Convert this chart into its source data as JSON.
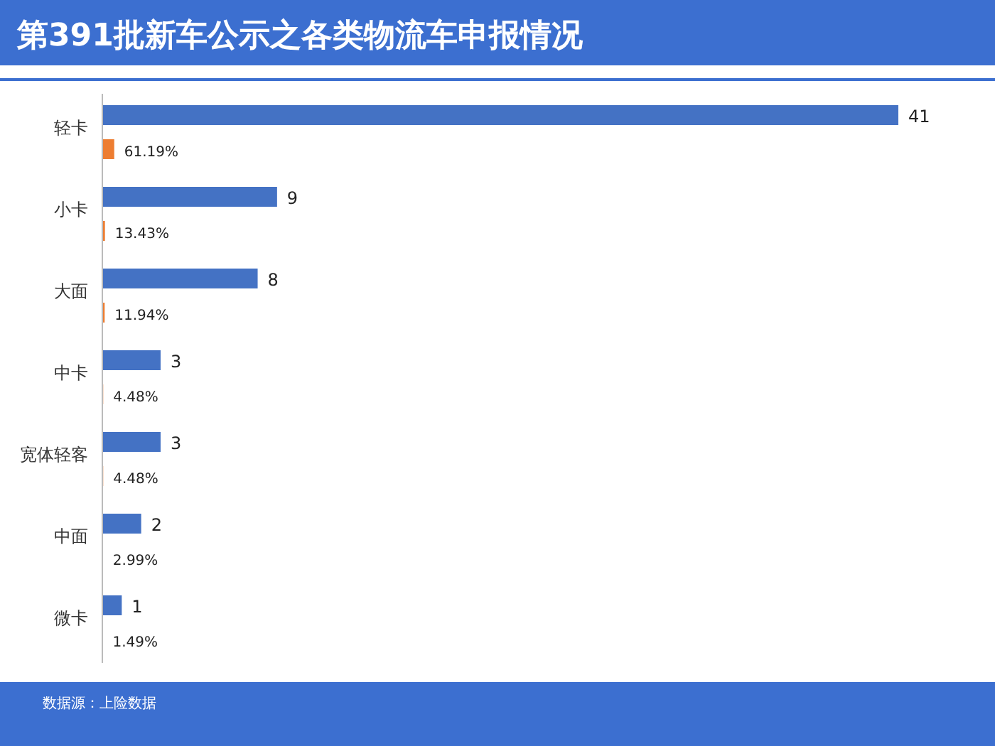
{
  "chart_data": {
    "type": "bar",
    "orientation": "horizontal",
    "title": "第391批新车公示之各类物流车申报情况",
    "categories": [
      "轻卡",
      "小卡",
      "大面",
      "中卡",
      "宽体轻客",
      "中面",
      "微卡"
    ],
    "series": [
      {
        "color": "#4472c4",
        "values": [
          41,
          9,
          8,
          3,
          3,
          2,
          1
        ],
        "value_labels": [
          "41",
          "9",
          "8",
          "3",
          "3",
          "2",
          "1"
        ]
      },
      {
        "color": "#ed7d31",
        "values": [
          0.6119,
          0.1343,
          0.1194,
          0.0448,
          0.0448,
          0.0299,
          0.0149
        ],
        "value_labels": [
          "61.19%",
          "13.43%",
          "11.94%",
          "4.48%",
          "4.48%",
          "2.99%",
          "1.49%"
        ]
      }
    ],
    "annotations": [
      "数据源：上险数据"
    ]
  }
}
